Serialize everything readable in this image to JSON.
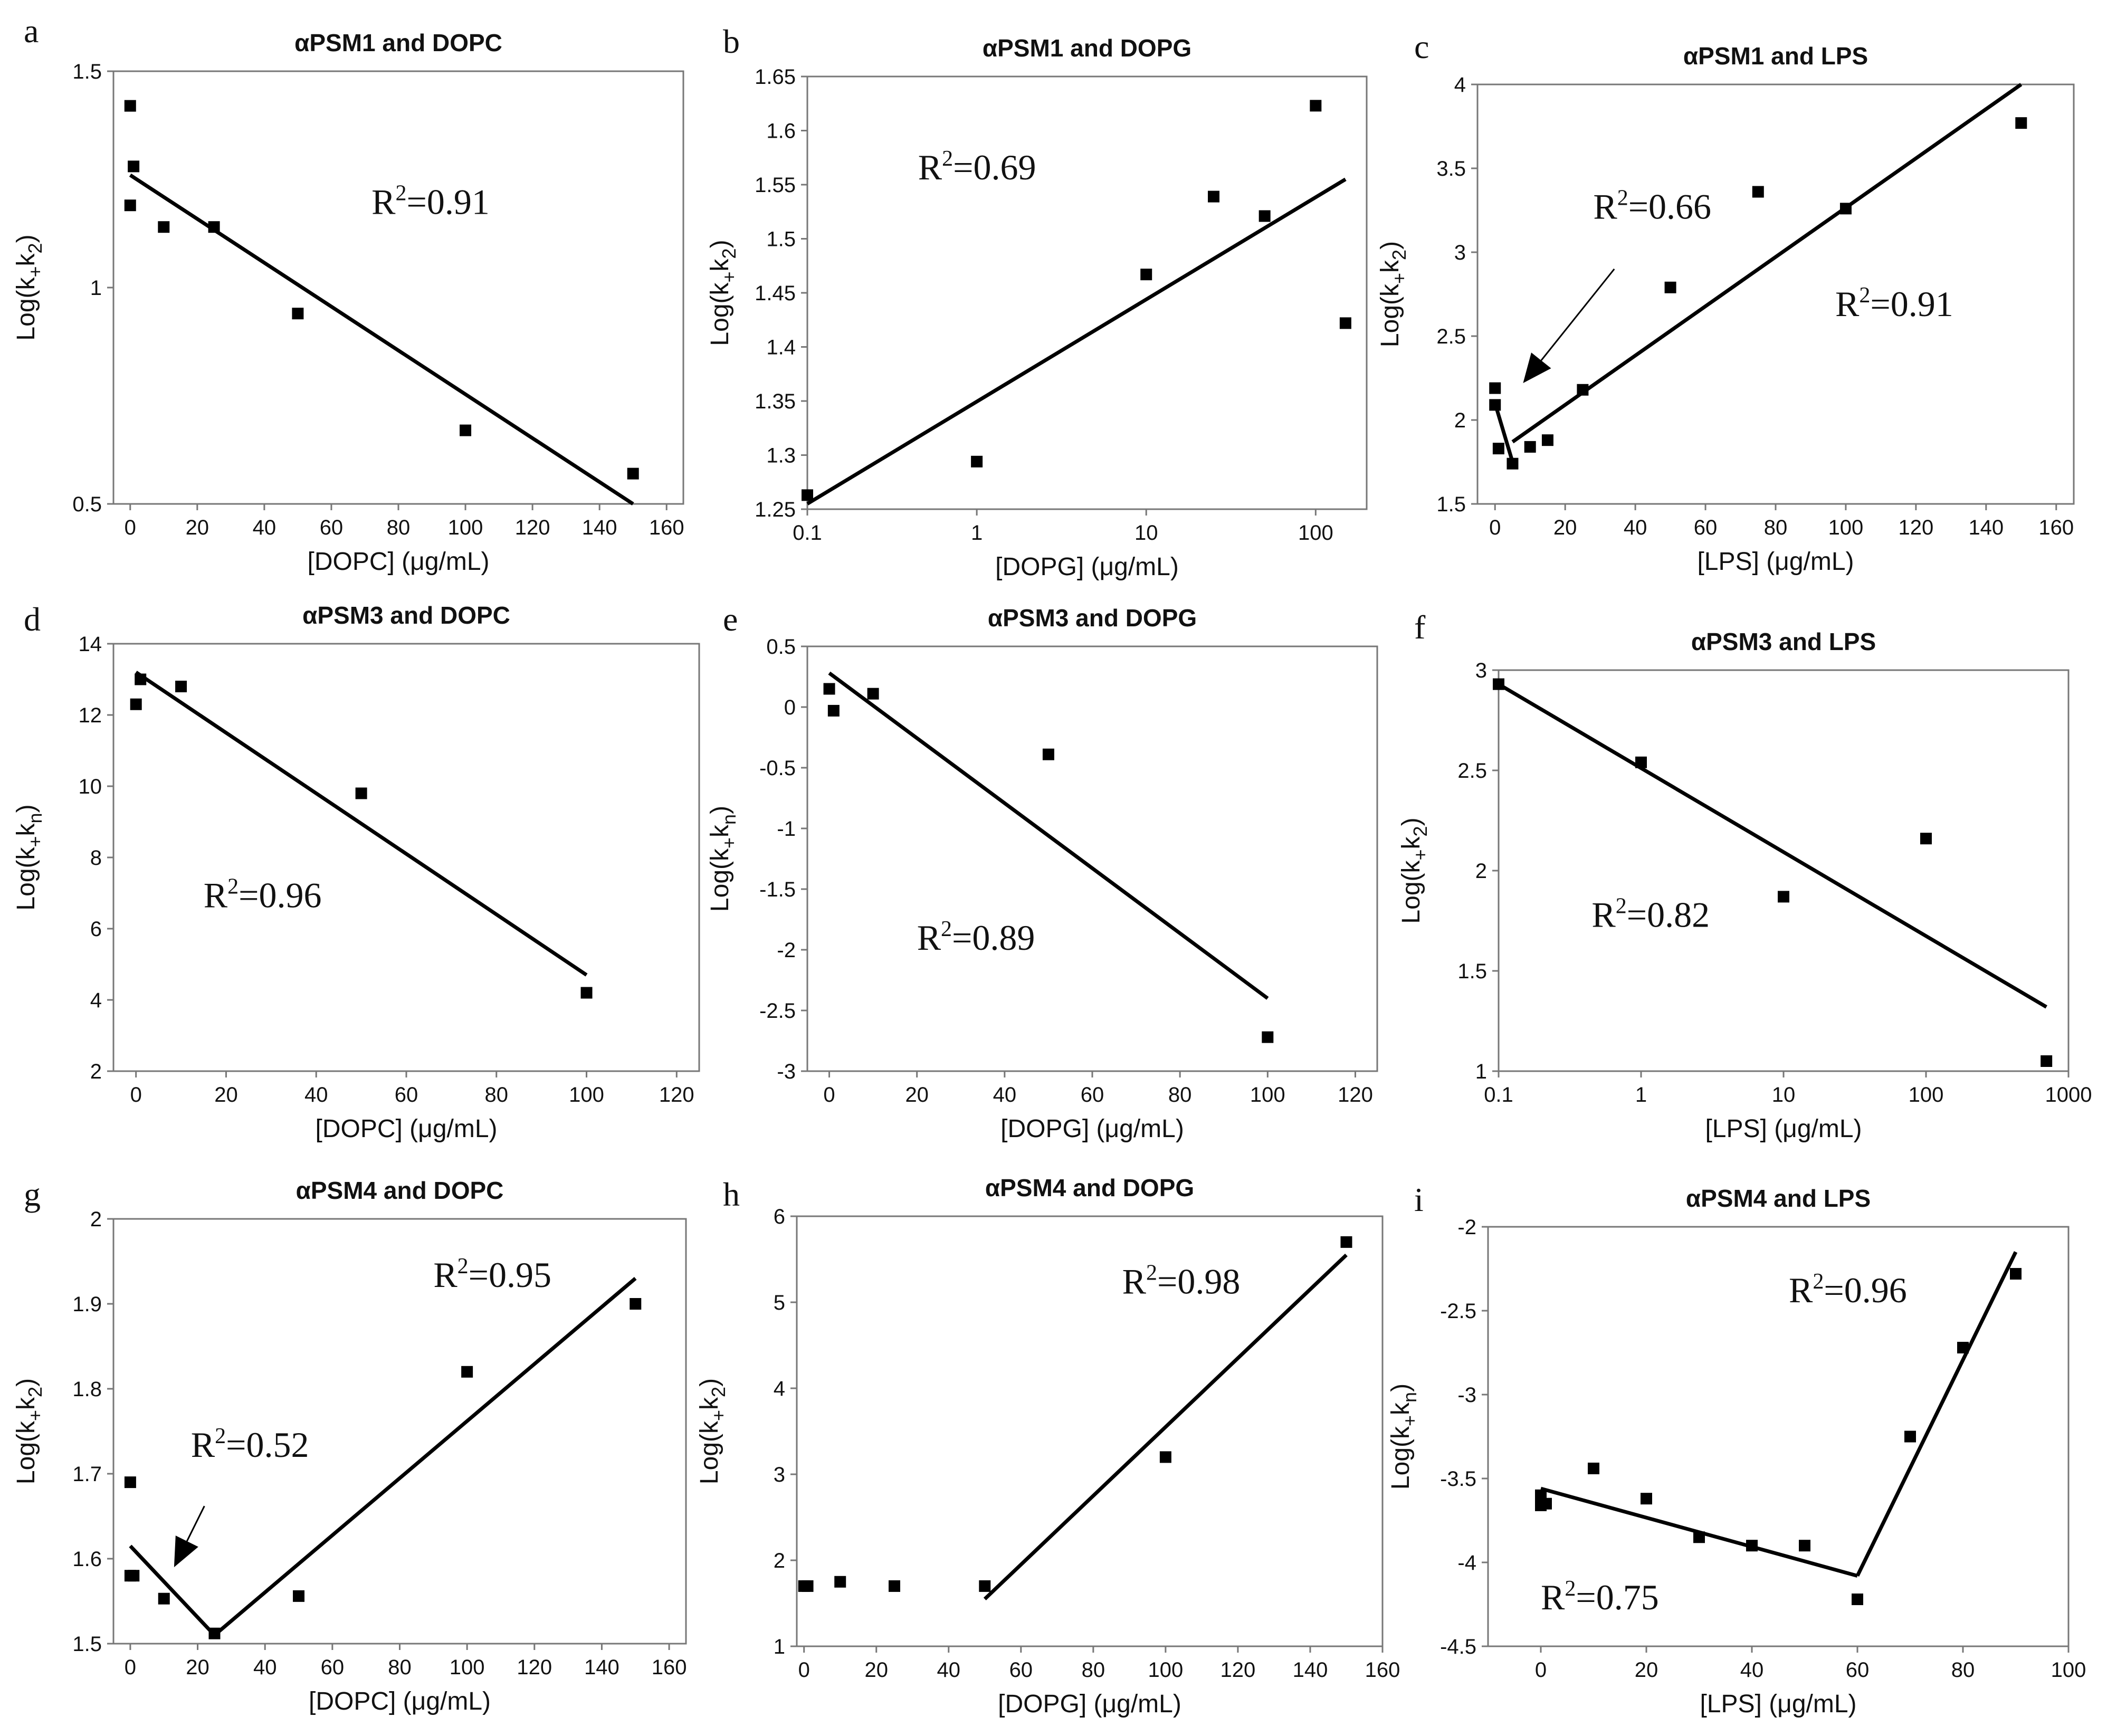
{
  "figure": {
    "background": "#ffffff",
    "point_color": "#000000",
    "line_color": "#000000"
  },
  "chart_data": [
    {
      "id": "a",
      "panel_label": "a",
      "type": "scatter",
      "title": "αPSM1 and DOPC",
      "xlabel": "[DOPC] (μg/mL)",
      "ylabel_base": "Log(k",
      "ylabel_sub1": "+",
      "ylabel_mid": "k",
      "ylabel_sub2": "2",
      "ylabel_end": ")",
      "xscale": "linear",
      "xlim": [
        -5,
        165
      ],
      "ylim": [
        0.5,
        1.5
      ],
      "xticks": [
        0,
        20,
        40,
        60,
        80,
        100,
        120,
        140,
        160
      ],
      "yticks": [
        0.5,
        1,
        1.5
      ],
      "ytick_labels": [
        "0.5",
        "1",
        "1.5"
      ],
      "points": [
        [
          0,
          1.42
        ],
        [
          1,
          1.28
        ],
        [
          0,
          1.19
        ],
        [
          10,
          1.14
        ],
        [
          25,
          1.14
        ],
        [
          50,
          0.94
        ],
        [
          100,
          0.67
        ],
        [
          150,
          0.57
        ]
      ],
      "fits": [
        {
          "x": [
            0,
            150
          ],
          "y": [
            1.26,
            0.5
          ]
        }
      ],
      "annotations": [
        {
          "text": "R",
          "sup": "2",
          "tail": "=0.91",
          "x": 72,
          "y": 1.17
        }
      ]
    },
    {
      "id": "b",
      "panel_label": "b",
      "type": "scatter",
      "title": "αPSM1 and DOPG",
      "xlabel": "[DOPG] (μg/mL)",
      "ylabel_base": "Log(k",
      "ylabel_sub1": "+",
      "ylabel_mid": "k",
      "ylabel_sub2": "2",
      "ylabel_end": ")",
      "xscale": "log",
      "xlim": [
        0.1,
        200
      ],
      "ylim": [
        1.25,
        1.65
      ],
      "xticks": [
        0.1,
        1,
        10,
        100
      ],
      "xtick_labels": [
        "0.1",
        "1",
        "10",
        "100"
      ],
      "yticks": [
        1.25,
        1.3,
        1.35,
        1.4,
        1.45,
        1.5,
        1.55,
        1.6,
        1.65
      ],
      "ytick_labels": [
        "1.25",
        "1.3",
        "1.35",
        "1.4",
        "1.45",
        "1.5",
        "1.55",
        "1.6",
        "1.65"
      ],
      "points": [
        [
          0.1,
          1.263
        ],
        [
          1,
          1.294
        ],
        [
          10,
          1.467
        ],
        [
          25,
          1.539
        ],
        [
          50,
          1.521
        ],
        [
          100,
          1.623
        ],
        [
          150,
          1.422
        ]
      ],
      "fits": [
        {
          "x": [
            0.1,
            150
          ],
          "y": [
            1.255,
            1.555
          ]
        }
      ],
      "annotations": [
        {
          "text": "R",
          "sup": "2",
          "tail": "=0.69",
          "x": 0.45,
          "y": 1.555
        }
      ]
    },
    {
      "id": "c",
      "panel_label": "c",
      "type": "scatter",
      "title": "αPSM1 and LPS",
      "xlabel": "[LPS] (μg/mL)",
      "ylabel_base": "Log(k",
      "ylabel_sub1": "+",
      "ylabel_mid": "k",
      "ylabel_sub2": "2",
      "ylabel_end": ")",
      "xscale": "linear",
      "xlim": [
        -5,
        165
      ],
      "ylim": [
        1.5,
        4
      ],
      "xticks": [
        0,
        20,
        40,
        60,
        80,
        100,
        120,
        140,
        160
      ],
      "yticks": [
        1.5,
        2,
        2.5,
        3,
        3.5,
        4
      ],
      "ytick_labels": [
        "1.5",
        "2",
        "2.5",
        "3",
        "3.5",
        "4"
      ],
      "points": [
        [
          0,
          2.19
        ],
        [
          0,
          2.09
        ],
        [
          1,
          1.83
        ],
        [
          5,
          1.74
        ],
        [
          10,
          1.84
        ],
        [
          15,
          1.88
        ],
        [
          25,
          2.18
        ],
        [
          50,
          2.79
        ],
        [
          75,
          3.36
        ],
        [
          100,
          3.26
        ],
        [
          150,
          3.77
        ]
      ],
      "fits": [
        {
          "x": [
            0,
            5
          ],
          "y": [
            2.1,
            1.75
          ]
        },
        {
          "x": [
            5,
            150
          ],
          "y": [
            1.87,
            4.0
          ]
        }
      ],
      "annotations": [
        {
          "text": "R",
          "sup": "2",
          "tail": "=0.66",
          "x": 28,
          "y": 3.2
        },
        {
          "text": "R",
          "sup": "2",
          "tail": "=0.91",
          "x": 97,
          "y": 2.62
        }
      ],
      "arrows": [
        {
          "from": [
            34,
            2.9
          ],
          "to": [
            8,
            2.22
          ]
        }
      ]
    },
    {
      "id": "d",
      "panel_label": "d",
      "type": "scatter",
      "title": "αPSM3 and DOPC",
      "xlabel": "[DOPC] (μg/mL)",
      "ylabel_base": "Log(k",
      "ylabel_sub1": "+",
      "ylabel_mid": "k",
      "ylabel_sub2": "n",
      "ylabel_end": ")",
      "xscale": "linear",
      "xlim": [
        -5,
        125
      ],
      "ylim": [
        2,
        14
      ],
      "xticks": [
        0,
        20,
        40,
        60,
        80,
        100,
        120
      ],
      "yticks": [
        2,
        4,
        6,
        8,
        10,
        12,
        14
      ],
      "ytick_labels": [
        "2",
        "4",
        "6",
        "8",
        "10",
        "12",
        "14"
      ],
      "points": [
        [
          0,
          12.3
        ],
        [
          1,
          13.0
        ],
        [
          10,
          12.8
        ],
        [
          50,
          9.8
        ],
        [
          100,
          4.2
        ]
      ],
      "fits": [
        {
          "x": [
            0,
            100
          ],
          "y": [
            13.2,
            4.7
          ]
        }
      ],
      "annotations": [
        {
          "text": "R",
          "sup": "2",
          "tail": "=0.96",
          "x": 15,
          "y": 6.6
        }
      ]
    },
    {
      "id": "e",
      "panel_label": "e",
      "type": "scatter",
      "title": "αPSM3 and DOPG",
      "xlabel": "[DOPG] (μg/mL)",
      "ylabel_base": "Log(k",
      "ylabel_sub1": "+",
      "ylabel_mid": "k",
      "ylabel_sub2": "n",
      "ylabel_end": ")",
      "xscale": "linear",
      "xlim": [
        -5,
        125
      ],
      "ylim": [
        -3,
        0.5
      ],
      "xticks": [
        0,
        20,
        40,
        60,
        80,
        100,
        120
      ],
      "yticks": [
        -3,
        -2.5,
        -2,
        -1.5,
        -1,
        -0.5,
        0,
        0.5
      ],
      "ytick_labels": [
        "-3",
        "-2.5",
        "-2",
        "-1.5",
        "-1",
        "-0.5",
        "0",
        "0.5"
      ],
      "points": [
        [
          0,
          0.15
        ],
        [
          1,
          -0.03
        ],
        [
          10,
          0.11
        ],
        [
          50,
          -0.39
        ],
        [
          100,
          -2.72
        ]
      ],
      "fits": [
        {
          "x": [
            0,
            100
          ],
          "y": [
            0.28,
            -2.4
          ]
        }
      ],
      "annotations": [
        {
          "text": "R",
          "sup": "2",
          "tail": "=0.89",
          "x": 20,
          "y": -2.0
        }
      ]
    },
    {
      "id": "f",
      "panel_label": "f",
      "type": "scatter",
      "title": "αPSM3 and LPS",
      "xlabel": "[LPS] (μg/mL)",
      "ylabel_base": "Log(k",
      "ylabel_sub1": "+",
      "ylabel_mid": "k",
      "ylabel_sub2": "2",
      "ylabel_end": ")",
      "xscale": "log",
      "xlim": [
        0.1,
        1000
      ],
      "ylim": [
        1,
        3
      ],
      "xticks": [
        0.1,
        1,
        10,
        100,
        1000
      ],
      "xtick_labels": [
        "0.1",
        "1",
        "10",
        "100",
        "1000"
      ],
      "yticks": [
        1,
        1.5,
        2,
        2.5,
        3
      ],
      "ytick_labels": [
        "1",
        "1.5",
        "2",
        "2.5",
        "3"
      ],
      "points": [
        [
          0.1,
          2.93
        ],
        [
          1,
          2.54
        ],
        [
          10,
          1.87
        ],
        [
          100,
          2.16
        ],
        [
          700,
          1.05
        ]
      ],
      "fits": [
        {
          "x": [
            0.1,
            700
          ],
          "y": [
            2.93,
            1.32
          ]
        }
      ],
      "annotations": [
        {
          "text": "R",
          "sup": "2",
          "tail": "=0.82",
          "x": 0.45,
          "y": 1.72
        }
      ]
    },
    {
      "id": "g",
      "panel_label": "g",
      "type": "scatter",
      "title": "αPSM4 and DOPC",
      "xlabel": "[DOPC] (μg/mL)",
      "ylabel_base": "Log(k",
      "ylabel_sub1": "+",
      "ylabel_mid": "k",
      "ylabel_sub2": "2",
      "ylabel_end": ")",
      "xscale": "linear",
      "xlim": [
        -5,
        165
      ],
      "ylim": [
        1.5,
        2
      ],
      "xticks": [
        0,
        20,
        40,
        60,
        80,
        100,
        120,
        140,
        160
      ],
      "yticks": [
        1.5,
        1.6,
        1.7,
        1.8,
        1.9,
        2
      ],
      "ytick_labels": [
        "1.5",
        "1.6",
        "1.7",
        "1.8",
        "1.9",
        "2"
      ],
      "points": [
        [
          0,
          1.69
        ],
        [
          0,
          1.58
        ],
        [
          1,
          1.58
        ],
        [
          10,
          1.553
        ],
        [
          25,
          1.512
        ],
        [
          50,
          1.556
        ],
        [
          100,
          1.82
        ],
        [
          150,
          1.9
        ]
      ],
      "fits": [
        {
          "x": [
            0,
            25
          ],
          "y": [
            1.615,
            1.51
          ]
        },
        {
          "x": [
            25,
            150
          ],
          "y": [
            1.51,
            1.93
          ]
        }
      ],
      "annotations": [
        {
          "text": "R",
          "sup": "2",
          "tail": "=0.95",
          "x": 90,
          "y": 1.92
        },
        {
          "text": "R",
          "sup": "2",
          "tail": "=0.52",
          "x": 18,
          "y": 1.72
        }
      ],
      "arrows": [
        {
          "from": [
            22,
            1.662
          ],
          "to": [
            13,
            1.59
          ]
        }
      ]
    },
    {
      "id": "h",
      "panel_label": "h",
      "type": "scatter",
      "title": "αPSM4 and DOPG",
      "xlabel": "[DOPG] (μg/mL)",
      "ylabel_base": "Log(k",
      "ylabel_sub1": "+",
      "ylabel_mid": "k",
      "ylabel_sub2": "2",
      "ylabel_end": ")",
      "xscale": "linear",
      "xlim": [
        -2,
        160
      ],
      "ylim": [
        1,
        6
      ],
      "xticks": [
        0,
        20,
        40,
        60,
        80,
        100,
        120,
        140,
        160
      ],
      "yticks": [
        1,
        2,
        3,
        4,
        5,
        6
      ],
      "ytick_labels": [
        "1",
        "2",
        "3",
        "4",
        "5",
        "6"
      ],
      "points": [
        [
          0,
          1.7
        ],
        [
          1,
          1.7
        ],
        [
          10,
          1.75
        ],
        [
          25,
          1.7
        ],
        [
          50,
          1.7
        ],
        [
          100,
          3.2
        ],
        [
          150,
          5.7
        ]
      ],
      "fits": [
        {
          "x": [
            50,
            150
          ],
          "y": [
            1.55,
            5.55
          ]
        }
      ],
      "annotations": [
        {
          "text": "R",
          "sup": "2",
          "tail": "=0.98",
          "x": 88,
          "y": 5.1
        }
      ]
    },
    {
      "id": "i",
      "panel_label": "i",
      "type": "scatter",
      "title": "αPSM4 and LPS",
      "xlabel": "[LPS] (μg/mL)",
      "ylabel_base": "Log(k",
      "ylabel_sub1": "+",
      "ylabel_mid": "k",
      "ylabel_sub2": "n",
      "ylabel_end": ")",
      "xscale": "linear",
      "xlim": [
        -10,
        100
      ],
      "ylim": [
        -4.5,
        -2
      ],
      "xticks": [
        0,
        20,
        40,
        60,
        80,
        100
      ],
      "yticks": [
        -4.5,
        -4,
        -3.5,
        -3,
        -2.5,
        -2
      ],
      "ytick_labels": [
        "-4.5",
        "-4",
        "-3.5",
        "-3",
        "-2.5",
        "-2"
      ],
      "points": [
        [
          0,
          -3.6
        ],
        [
          0,
          -3.66
        ],
        [
          1,
          -3.65
        ],
        [
          10,
          -3.44
        ],
        [
          20,
          -3.62
        ],
        [
          30,
          -3.85
        ],
        [
          40,
          -3.9
        ],
        [
          50,
          -3.9
        ],
        [
          60,
          -4.22
        ],
        [
          70,
          -3.25
        ],
        [
          80,
          -2.72
        ],
        [
          90,
          -2.28
        ]
      ],
      "fits": [
        {
          "x": [
            0,
            60
          ],
          "y": [
            -3.56,
            -4.08
          ]
        },
        {
          "x": [
            60,
            90
          ],
          "y": [
            -4.08,
            -2.15
          ]
        }
      ],
      "annotations": [
        {
          "text": "R",
          "sup": "2",
          "tail": "=0.96",
          "x": 47,
          "y": -2.45
        },
        {
          "text": "R",
          "sup": "2",
          "tail": "=0.75",
          "x": 0,
          "y": -4.28
        }
      ]
    }
  ]
}
